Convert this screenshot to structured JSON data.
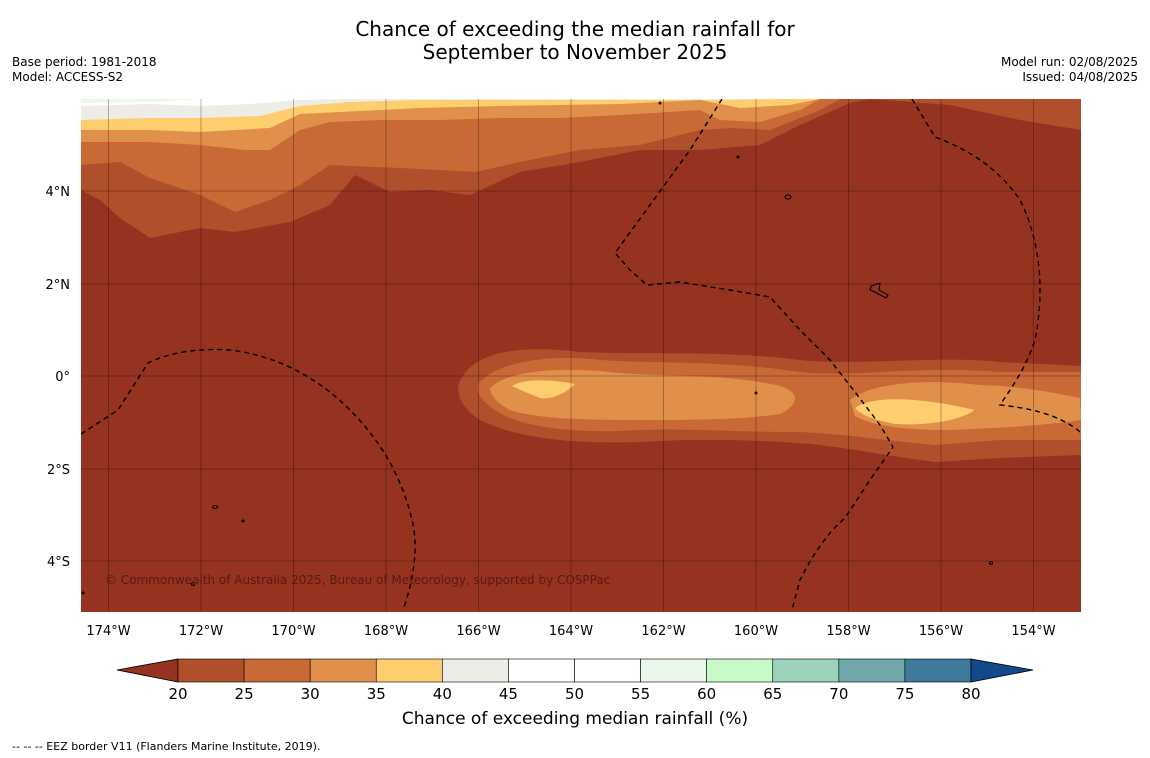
{
  "title": {
    "line1": "Chance of exceeding the median rainfall for",
    "line2": "September to November 2025"
  },
  "meta_left": {
    "base_period": "Base period: 1981-2018",
    "model": "Model: ACCESS-S2"
  },
  "meta_right": {
    "model_run": "Model run: 02/08/2025",
    "issued": "Issued: 04/08/2025"
  },
  "map": {
    "lat_labels": [
      "4°N",
      "2°N",
      "0°",
      "2°S",
      "4°S"
    ],
    "lon_labels": [
      "174°W",
      "172°W",
      "170°W",
      "168°W",
      "166°W",
      "164°W",
      "162°W",
      "160°W",
      "158°W",
      "156°W",
      "154°W"
    ],
    "copyright": "© Commonwealth of Australia 2025, Bureau of Meteorology, supported by COSPPac",
    "ocean_color": "#953220"
  },
  "colorbar": {
    "title": "Chance of exceeding median rainfall (%)",
    "ticks": [
      "20",
      "25",
      "30",
      "35",
      "40",
      "45",
      "50",
      "55",
      "60",
      "65",
      "70",
      "75",
      "80"
    ],
    "colors": [
      "#b04f2b",
      "#c96936",
      "#e0904a",
      "#fdcd6e",
      "#eeece6",
      "#ffffff",
      "#ffffff",
      "#eaf7ea",
      "#c8f9c9",
      "#9cd1ba",
      "#6fa7ab",
      "#3f7a9d"
    ],
    "under_color": "#953220",
    "over_color": "#11498a"
  },
  "footnote": "--  --  -- EEZ border V11 (Flanders Marine Institute, 2019)."
}
